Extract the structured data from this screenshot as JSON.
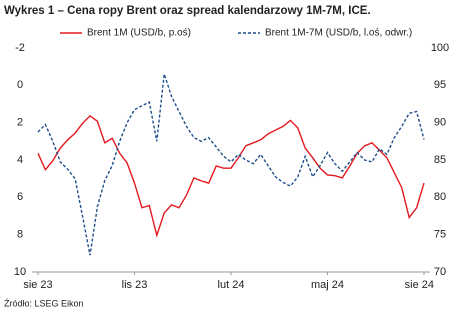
{
  "chart_data": {
    "type": "line",
    "title": "Wykres 1 – Cena ropy Brent oraz spread kalendarzowy 1M-7M, ICE.",
    "source": "Źródło: LSEG Eikon",
    "categories": [
      "sie 23",
      null,
      null,
      null,
      null,
      null,
      null,
      null,
      null,
      null,
      null,
      null,
      null,
      "lis 23",
      null,
      null,
      null,
      null,
      null,
      null,
      null,
      null,
      null,
      null,
      null,
      null,
      "lut 24",
      null,
      null,
      null,
      null,
      null,
      null,
      null,
      null,
      null,
      null,
      null,
      null,
      "maj 24",
      null,
      null,
      null,
      null,
      null,
      null,
      null,
      null,
      null,
      null,
      null,
      null,
      "sie 24"
    ],
    "series": [
      {
        "name": "Brent 1M (USD/b, p.oś)",
        "color": "#e3191f",
        "dashed": false,
        "axis": "y2",
        "values": [
          85.9,
          83.7,
          84.9,
          86.6,
          87.7,
          88.6,
          89.9,
          90.9,
          90.2,
          87.3,
          87.9,
          85.9,
          84.6,
          81.9,
          78.6,
          78.9,
          74.9,
          77.9,
          79.0,
          78.6,
          80.3,
          82.6,
          82.2,
          81.9,
          84.2,
          83.9,
          83.9,
          85.3,
          86.9,
          87.3,
          87.7,
          88.5,
          89.0,
          89.5,
          90.3,
          89.3,
          86.6,
          85.3,
          83.9,
          83.0,
          82.9,
          82.6,
          84.2,
          85.9,
          86.9,
          87.3,
          86.3,
          85.3,
          83.3,
          81.3,
          77.3,
          78.6,
          81.9
        ]
      },
      {
        "name": "Brent 1M-7M (USD/b, l.oś, odwr.)",
        "color": "#1f4e8c",
        "dashed": true,
        "axis": "y",
        "values": [
          2.5,
          2.1,
          3.0,
          4.1,
          4.5,
          5.0,
          7.0,
          9.1,
          6.5,
          5.1,
          4.3,
          3.0,
          2.0,
          1.3,
          1.1,
          0.9,
          3.0,
          -0.6,
          0.6,
          1.4,
          2.2,
          2.8,
          3.0,
          2.8,
          3.3,
          3.8,
          4.1,
          3.7,
          4.0,
          4.2,
          3.7,
          4.3,
          4.9,
          5.2,
          5.4,
          4.9,
          3.8,
          4.9,
          4.3,
          3.6,
          4.2,
          4.6,
          4.1,
          3.6,
          4.0,
          4.1,
          3.4,
          3.7,
          2.8,
          2.2,
          1.5,
          1.4,
          2.9
        ]
      }
    ],
    "ylim": [
      -2,
      10
    ],
    "yticks": [
      -2,
      0,
      2,
      4,
      6,
      8,
      10
    ],
    "y_reversed": true,
    "y2lim": [
      70,
      100
    ],
    "y2ticks": [
      70,
      75,
      80,
      85,
      90,
      95,
      100
    ]
  }
}
